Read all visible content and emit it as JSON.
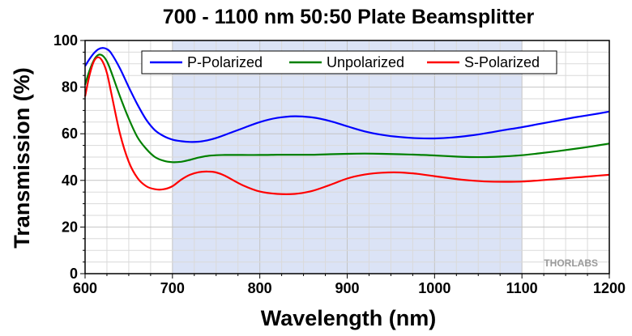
{
  "watermark": "THORLABS",
  "chart_data": {
    "type": "line",
    "title": "700 - 1100 nm 50:50 Plate Beamsplitter",
    "xlabel": "Wavelength (nm)",
    "ylabel": "Transmission (%)",
    "xlim": [
      600,
      1200
    ],
    "ylim": [
      0,
      100
    ],
    "xticks": [
      600,
      700,
      800,
      900,
      1000,
      1100,
      1200
    ],
    "yticks": [
      0,
      20,
      40,
      60,
      80,
      100
    ],
    "grid": true,
    "highlight_band": [
      700,
      1100
    ],
    "legend_position": "top",
    "series": [
      {
        "name": "P-Polarized",
        "color": "#0000ff",
        "x": [
          600,
          605,
          610,
          615,
          620,
          625,
          630,
          640,
          650,
          660,
          670,
          680,
          690,
          700,
          710,
          720,
          730,
          740,
          750,
          760,
          780,
          800,
          820,
          840,
          860,
          880,
          900,
          920,
          940,
          960,
          980,
          1000,
          1020,
          1040,
          1060,
          1080,
          1100,
          1120,
          1140,
          1160,
          1180,
          1200
        ],
        "values": [
          89,
          92,
          94.5,
          96.2,
          96.8,
          96.3,
          94.5,
          88,
          80,
          72.5,
          66,
          61.5,
          59,
          57.5,
          56.8,
          56.5,
          56.6,
          57.2,
          58.2,
          59.5,
          62.3,
          65,
          66.8,
          67.5,
          67,
          65.5,
          63.2,
          61,
          59.5,
          58.6,
          58.1,
          58,
          58.4,
          59.2,
          60.3,
          61.6,
          62.8,
          64.2,
          65.6,
          67,
          68.2,
          69.5
        ]
      },
      {
        "name": "Unpolarized",
        "color": "#008000",
        "x": [
          600,
          605,
          610,
          615,
          620,
          625,
          630,
          640,
          650,
          660,
          670,
          680,
          690,
          700,
          710,
          720,
          730,
          740,
          750,
          760,
          780,
          800,
          820,
          840,
          860,
          880,
          900,
          920,
          940,
          960,
          980,
          1000,
          1020,
          1040,
          1060,
          1080,
          1100,
          1120,
          1140,
          1160,
          1180,
          1200
        ],
        "values": [
          81,
          87,
          91.5,
          93.8,
          93.5,
          91,
          86.5,
          76,
          66.5,
          58.5,
          53.5,
          50,
          48.4,
          47.8,
          48,
          48.8,
          49.8,
          50.5,
          50.8,
          50.9,
          50.9,
          50.9,
          51,
          51,
          51,
          51.2,
          51.4,
          51.5,
          51.4,
          51.2,
          51,
          50.7,
          50.3,
          50,
          50,
          50.3,
          50.8,
          51.6,
          52.5,
          53.5,
          54.6,
          55.8
        ]
      },
      {
        "name": "S-Polarized",
        "color": "#ff0000",
        "x": [
          600,
          605,
          610,
          615,
          620,
          625,
          630,
          640,
          650,
          660,
          670,
          680,
          690,
          700,
          710,
          720,
          730,
          740,
          750,
          760,
          780,
          800,
          820,
          840,
          860,
          880,
          900,
          920,
          940,
          960,
          980,
          1000,
          1020,
          1040,
          1060,
          1080,
          1100,
          1120,
          1140,
          1160,
          1180,
          1200
        ],
        "values": [
          76,
          85,
          91,
          92.8,
          91,
          86,
          77.5,
          60,
          48,
          41,
          37.5,
          36.2,
          36.2,
          37.5,
          40.3,
          42.4,
          43.5,
          43.8,
          43.4,
          42,
          38,
          35.2,
          34.2,
          34.2,
          35.5,
          38,
          40.8,
          42.5,
          43.3,
          43.4,
          42.8,
          41.8,
          40.8,
          40,
          39.5,
          39.4,
          39.5,
          40,
          40.6,
          41.2,
          41.8,
          42.4
        ]
      }
    ]
  }
}
